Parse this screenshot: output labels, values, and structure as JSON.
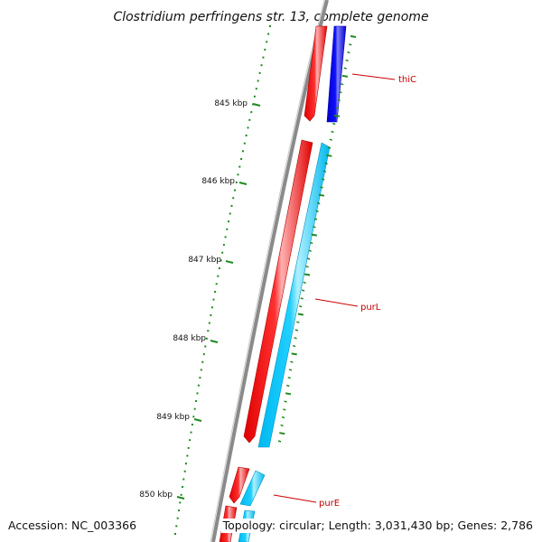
{
  "title": "Clostridium perfringens str. 13, complete genome",
  "accession_label": "Accession: NC_003366",
  "summary_label": "Topology: circular; Length: 3,031,430 bp; Genes: 2,786",
  "scale_labels": [
    "845 kbp",
    "846 kbp",
    "847 kbp",
    "848 kbp",
    "849 kbp",
    "850 kbp"
  ],
  "gene_labels": [
    "thiC",
    "purL",
    "purE"
  ],
  "colors": {
    "backbone": "#8a8a8a",
    "forward_cds": "#ff0000",
    "reverse_cds_thiC": "#0000ee",
    "reverse_cds": "#00ccff",
    "tick": "#1f8a1f",
    "gene_label": "#cc0000"
  }
}
